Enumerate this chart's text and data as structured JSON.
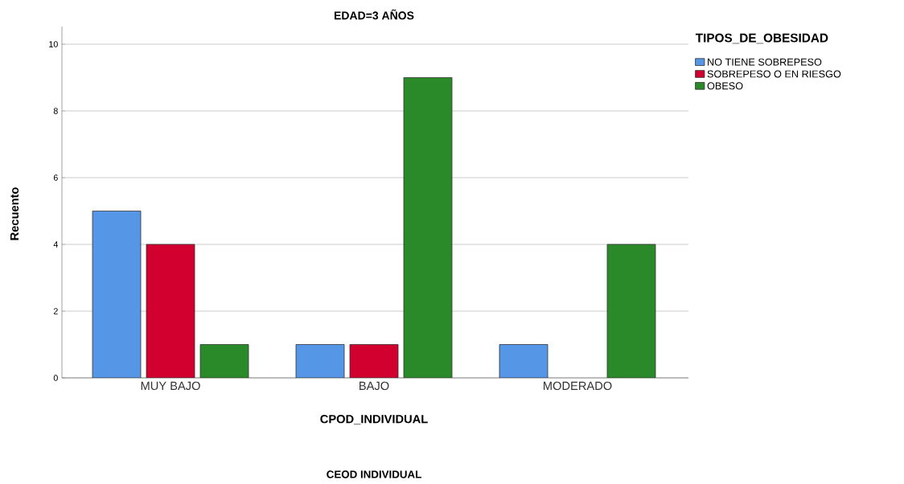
{
  "chart_data": {
    "type": "bar",
    "title": "EDAD=3 AÑOS",
    "xlabel": "CPOD_INDIVIDUAL",
    "ylabel": "Recuento",
    "legend_title": "TIPOS_DE_OBESIDAD",
    "annotations": [
      "CEOD INDIVIDUAL"
    ],
    "categories": [
      "MUY BAJO",
      "BAJO",
      "MODERADO"
    ],
    "series": [
      {
        "name": "NO TIENE SOBREPESO",
        "color": "#5596e6",
        "values": [
          5,
          1,
          1
        ]
      },
      {
        "name": "SOBREPESO O EN RIESGO",
        "color": "#d2002e",
        "values": [
          4,
          1,
          null
        ]
      },
      {
        "name": "OBESO",
        "color": "#2a8a2a",
        "values": [
          1,
          9,
          4
        ]
      }
    ],
    "ylim": [
      0,
      10.53
    ],
    "yticks": [
      0,
      2,
      4,
      6,
      8,
      10
    ],
    "grid": "y",
    "legend": "top right"
  }
}
